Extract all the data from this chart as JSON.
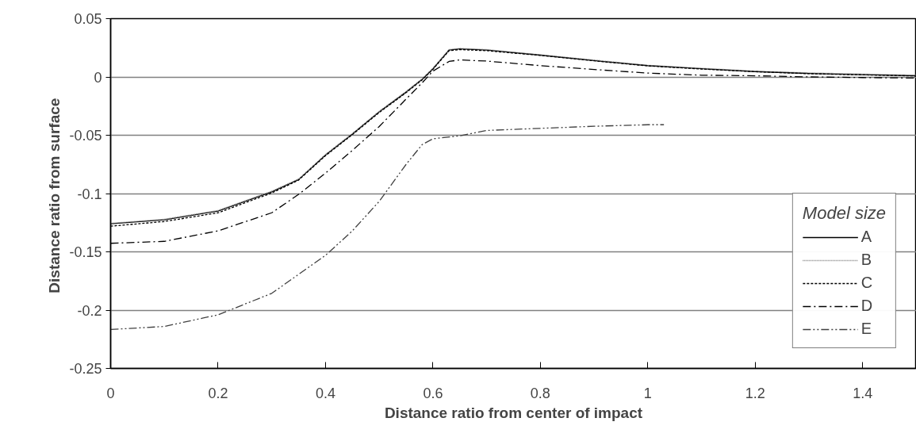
{
  "chart_data": {
    "type": "line",
    "xlabel": "Distance ratio from center of impact",
    "ylabel": "Distance ratio  from surface",
    "legend_title": "Model size",
    "legend": "bottom right",
    "grid": "y",
    "xlim": [
      0,
      1.5
    ],
    "xticks": [
      0,
      0.2,
      0.4,
      0.6,
      0.8,
      1,
      1.2,
      1.4
    ],
    "ylim": [
      -0.25,
      0.05
    ],
    "yticks": [
      0.05,
      0,
      -0.05,
      -0.1,
      -0.15,
      -0.2,
      -0.25
    ],
    "x": [
      0,
      0.1,
      0.2,
      0.3,
      0.35,
      0.4,
      0.45,
      0.5,
      0.55,
      0.58,
      0.6,
      0.63,
      0.65,
      0.7,
      0.8,
      0.9,
      1.0,
      1.1,
      1.2,
      1.3,
      1.4,
      1.5
    ],
    "series": [
      {
        "name": "A",
        "color": "#000000",
        "line_style": "solid",
        "values": [
          -0.126,
          -0.1225,
          -0.115,
          -0.0985,
          -0.088,
          -0.067,
          -0.049,
          -0.03,
          -0.013,
          -0.002,
          0.007,
          0.023,
          0.024,
          0.023,
          0.0187,
          0.014,
          0.0097,
          0.007,
          0.0046,
          0.003,
          0.002,
          0.001
        ]
      },
      {
        "name": "B",
        "color": "#808080",
        "line_style": "dotted",
        "values": [
          -0.1255,
          -0.122,
          -0.1145,
          -0.098,
          -0.0875,
          -0.0665,
          -0.0485,
          -0.0295,
          -0.0125,
          -0.0015,
          0.0075,
          0.0235,
          0.0245,
          0.0235,
          0.019,
          0.0145,
          0.01,
          0.0075,
          0.005,
          0.0035,
          0.0025,
          0.0015
        ]
      },
      {
        "name": "C",
        "color": "#000000",
        "line_style": "dashed",
        "values": [
          -0.128,
          -0.124,
          -0.1165,
          -0.0995,
          -0.0885,
          -0.0675,
          -0.0495,
          -0.0305,
          -0.0135,
          -0.0025,
          0.0065,
          0.0225,
          0.0235,
          0.0225,
          0.0185,
          0.0138,
          0.0095,
          0.0068,
          0.0045,
          0.0028,
          0.0018,
          0.0008
        ]
      },
      {
        "name": "D",
        "color": "#000000",
        "line_style": "dashdot",
        "values": [
          -0.1427,
          -0.141,
          -0.132,
          -0.1165,
          -0.1007,
          -0.0825,
          -0.063,
          -0.0425,
          -0.019,
          -0.005,
          0.005,
          0.0133,
          0.0146,
          0.0136,
          0.0097,
          0.0064,
          0.0033,
          0.0015,
          0.001,
          0,
          -0.0005,
          -0.001
        ]
      },
      {
        "name": "E",
        "color": "#404040",
        "line_style": "dashdotdot",
        "x": [
          0,
          0.1,
          0.2,
          0.3,
          0.4,
          0.45,
          0.5,
          0.55,
          0.58,
          0.6,
          0.65,
          0.7,
          0.8,
          0.9,
          1.0,
          1.03
        ],
        "values": [
          -0.2166,
          -0.214,
          -0.204,
          -0.1856,
          -0.153,
          -0.132,
          -0.1067,
          -0.075,
          -0.058,
          -0.053,
          -0.0505,
          -0.0459,
          -0.0441,
          -0.0423,
          -0.041,
          -0.041
        ]
      }
    ]
  }
}
